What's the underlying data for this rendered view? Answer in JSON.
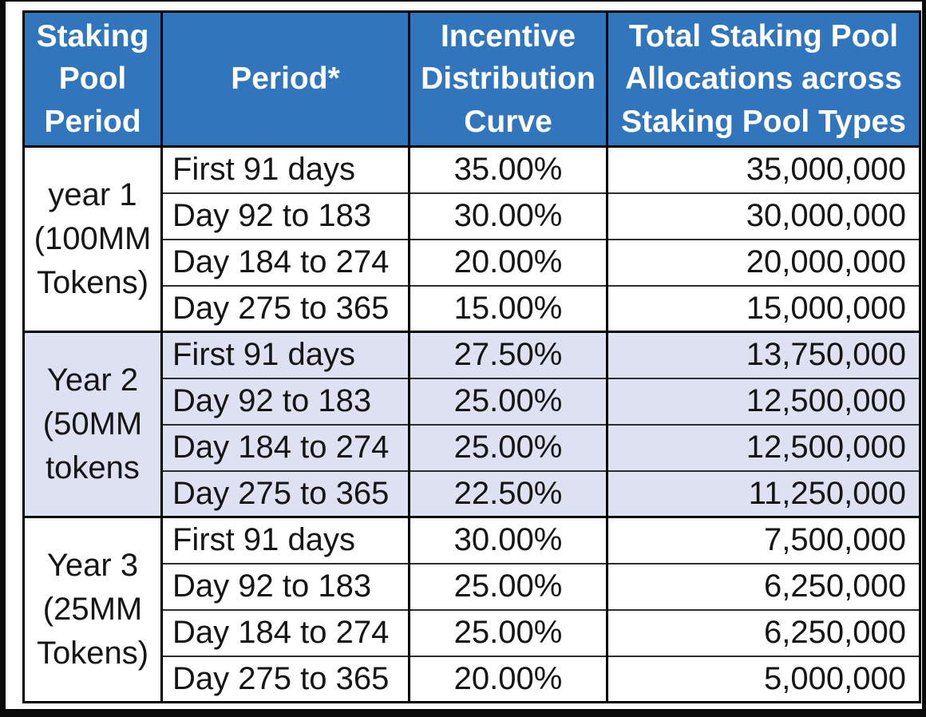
{
  "table": {
    "headers": {
      "staking_pool_period": "Staking Pool Period",
      "period": "Period*",
      "incentive_distribution_curve": "Incentive Distribution Curve",
      "total_allocations": "Total Staking Pool Allocations across Staking Pool Types"
    },
    "groups": [
      {
        "label": "year 1 (100MM Tokens)",
        "rows": [
          {
            "period": "First 91 days",
            "curve": "35.00%",
            "allocation": "35,000,000"
          },
          {
            "period": "Day 92 to 183",
            "curve": "30.00%",
            "allocation": "30,000,000"
          },
          {
            "period": "Day 184 to 274",
            "curve": "20.00%",
            "allocation": "20,000,000"
          },
          {
            "period": "Day 275 to 365",
            "curve": "15.00%",
            "allocation": "15,000,000"
          }
        ]
      },
      {
        "label": "Year 2 (50MM tokens",
        "rows": [
          {
            "period": "First 91 days",
            "curve": "27.50%",
            "allocation": "13,750,000"
          },
          {
            "period": "Day 92 to 183",
            "curve": "25.00%",
            "allocation": "12,500,000"
          },
          {
            "period": "Day 184 to 274",
            "curve": "25.00%",
            "allocation": "12,500,000"
          },
          {
            "period": "Day 275 to 365",
            "curve": "22.50%",
            "allocation": "11,250,000"
          }
        ]
      },
      {
        "label": "Year 3 (25MM Tokens)",
        "rows": [
          {
            "period": "First 91 days",
            "curve": "30.00%",
            "allocation": "7,500,000"
          },
          {
            "period": "Day 92 to 183",
            "curve": "25.00%",
            "allocation": "6,250,000"
          },
          {
            "period": "Day 184 to 274",
            "curve": "25.00%",
            "allocation": "6,250,000"
          },
          {
            "period": "Day 275 to 365",
            "curve": "20.00%",
            "allocation": "5,000,000"
          }
        ]
      }
    ]
  },
  "chart_data": {
    "type": "table",
    "columns": [
      "Staking Pool Period",
      "Period*",
      "Incentive Distribution Curve",
      "Total Staking Pool Allocations across Staking Pool Types"
    ],
    "rows": [
      [
        "year 1 (100MM Tokens)",
        "First 91 days",
        "35.00%",
        "35,000,000"
      ],
      [
        "year 1 (100MM Tokens)",
        "Day 92 to 183",
        "30.00%",
        "30,000,000"
      ],
      [
        "year 1 (100MM Tokens)",
        "Day 184 to 274",
        "20.00%",
        "20,000,000"
      ],
      [
        "year 1 (100MM Tokens)",
        "Day 275 to 365",
        "15.00%",
        "15,000,000"
      ],
      [
        "Year 2 (50MM tokens",
        "First 91 days",
        "27.50%",
        "13,750,000"
      ],
      [
        "Year 2 (50MM tokens",
        "Day 92 to 183",
        "25.00%",
        "12,500,000"
      ],
      [
        "Year 2 (50MM tokens",
        "Day 184 to 274",
        "25.00%",
        "12,500,000"
      ],
      [
        "Year 2 (50MM tokens",
        "Day 275 to 365",
        "22.50%",
        "11,250,000"
      ],
      [
        "Year 3 (25MM Tokens)",
        "First 91 days",
        "30.00%",
        "7,500,000"
      ],
      [
        "Year 3 (25MM Tokens)",
        "Day 92 to 183",
        "25.00%",
        "6,250,000"
      ],
      [
        "Year 3 (25MM Tokens)",
        "Day 184 to 274",
        "25.00%",
        "6,250,000"
      ],
      [
        "Year 3 (25MM Tokens)",
        "Day 275 to 365",
        "20.00%",
        "5,000,000"
      ]
    ]
  },
  "colors": {
    "header_bg": "#3175BD",
    "header_text": "#FFFFFF",
    "year2_row_bg": "#DDE1F2",
    "body_text": "#151515",
    "border": "#000000"
  }
}
